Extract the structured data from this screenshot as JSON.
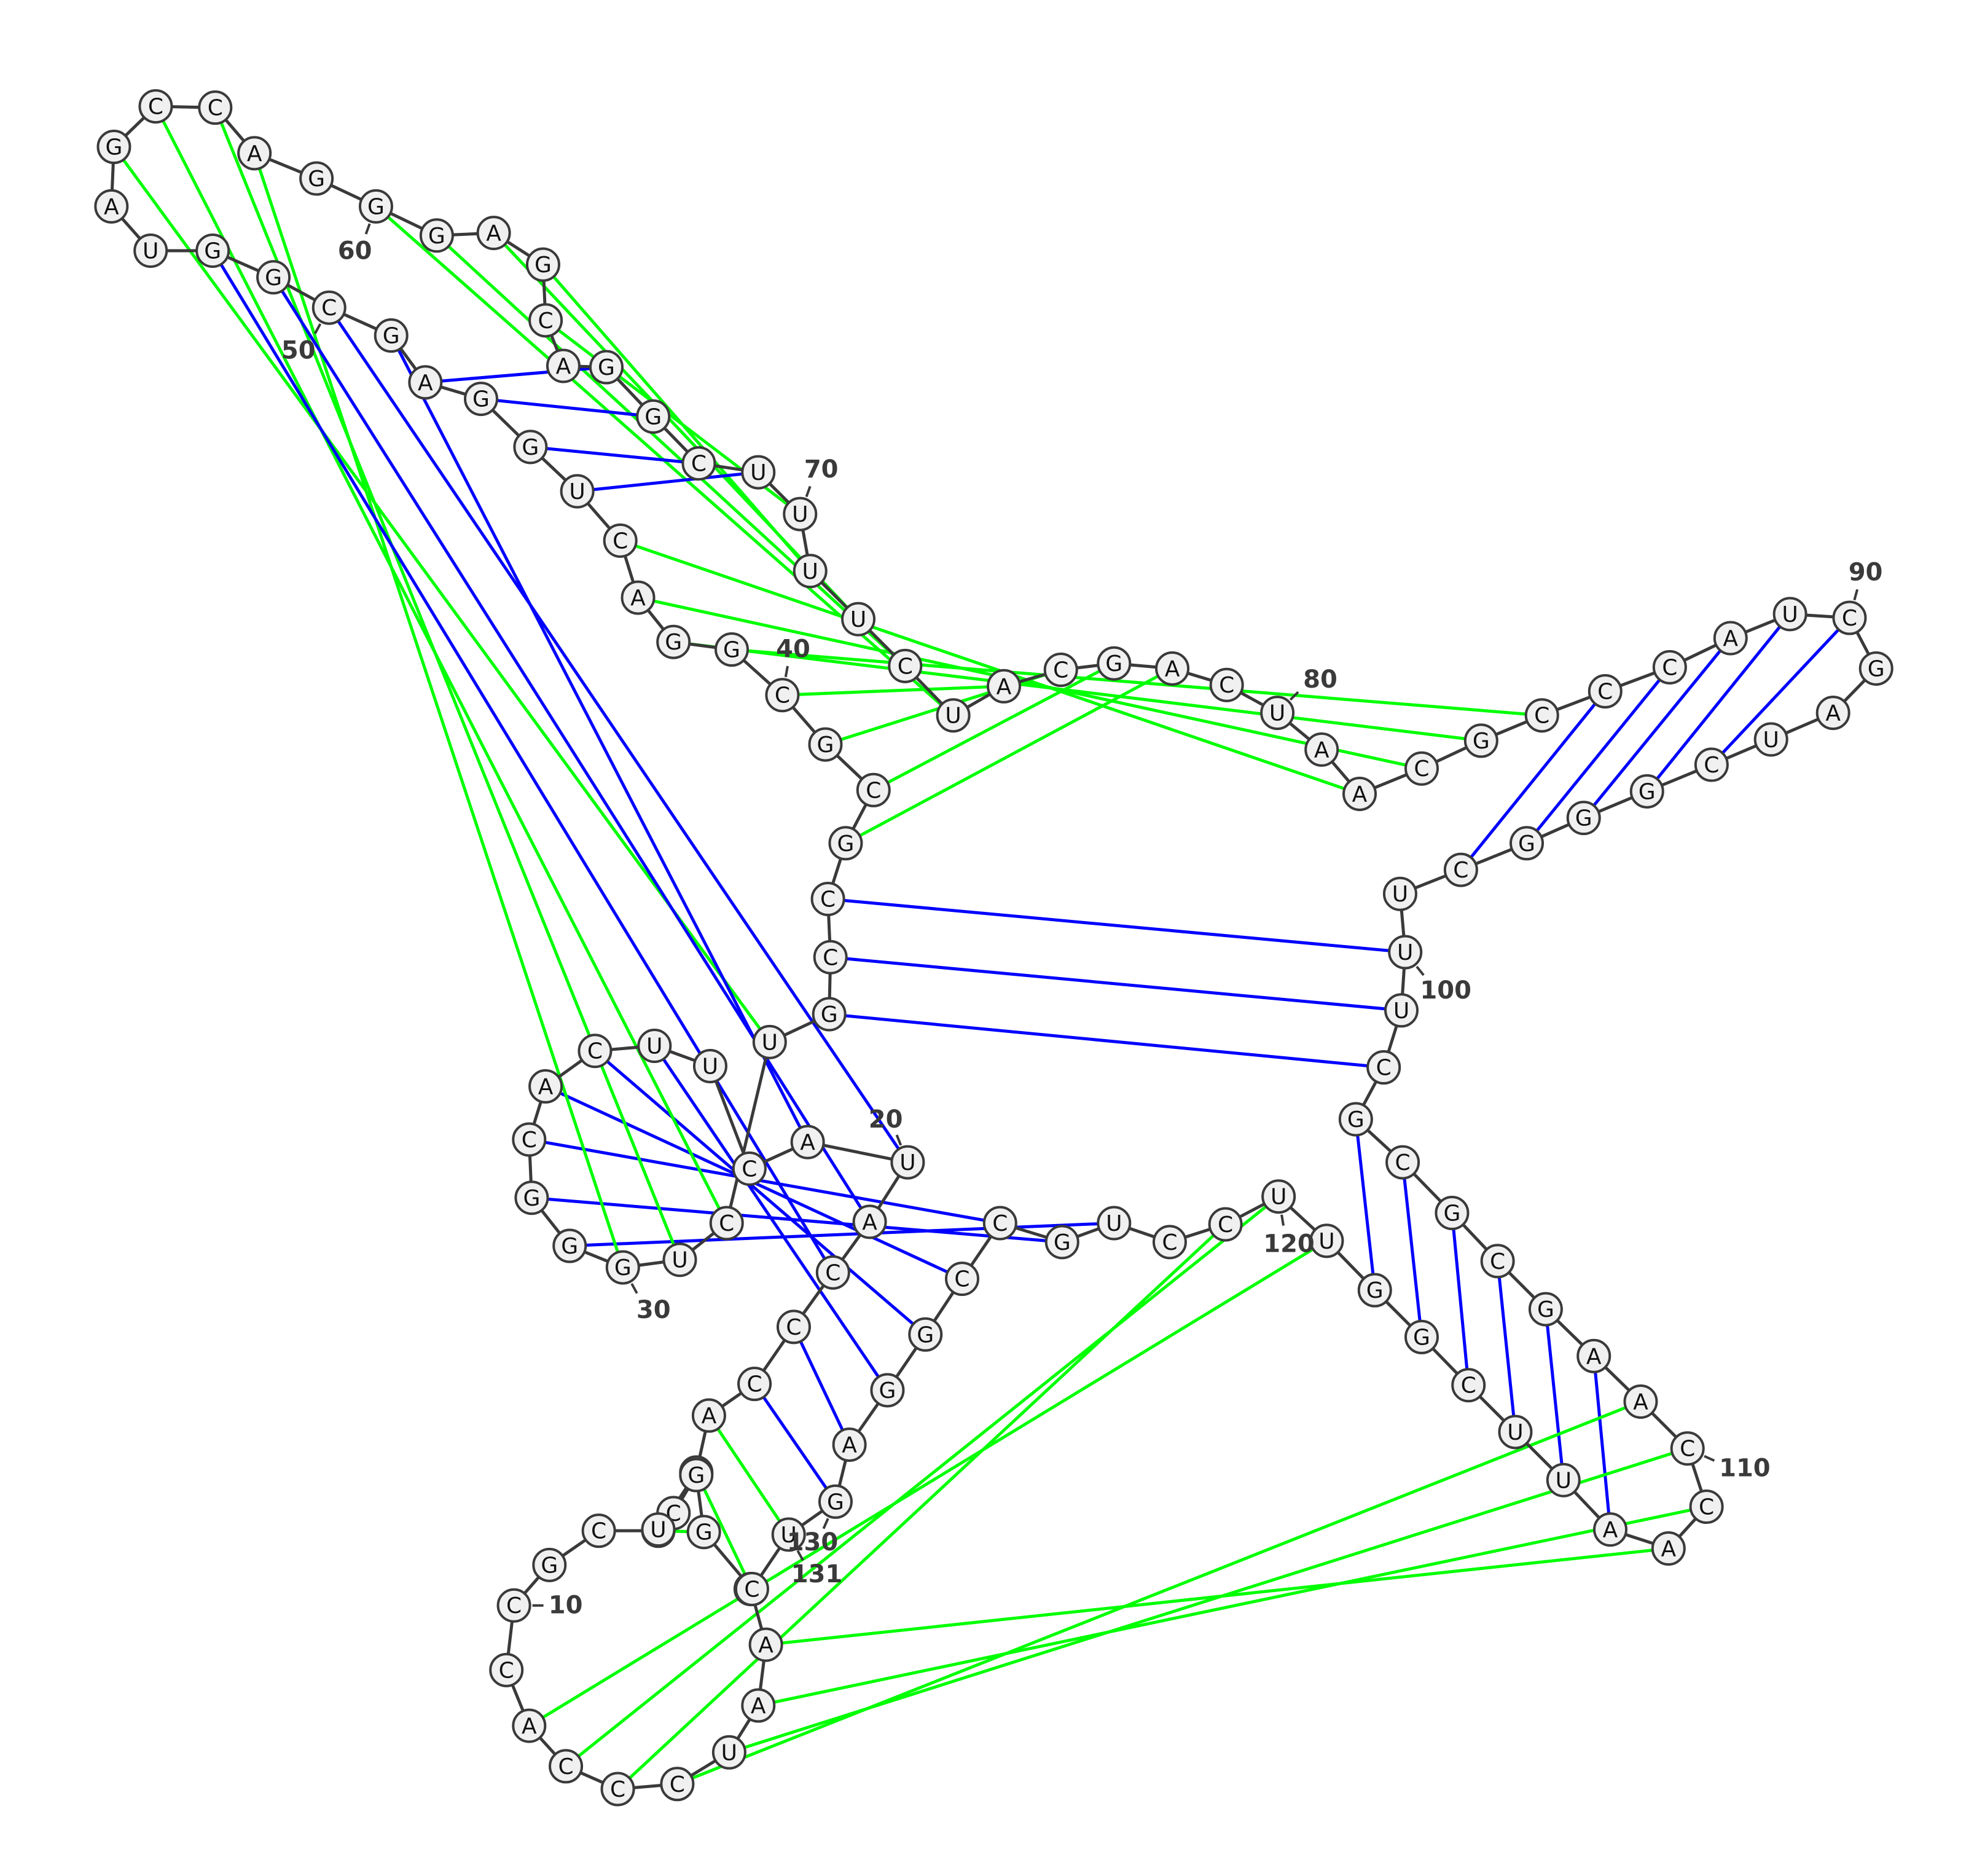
{
  "colors": {
    "backbone": "#3a3a3a",
    "canonical_pair": "#0000ff",
    "noncanonical_pair": "#00ff00",
    "nucleotide_fill": "#f0f0f0"
  },
  "nucleotides": [
    "G",
    "A",
    "A",
    "U",
    "C",
    "C",
    "C",
    "A",
    "C",
    "C",
    "G",
    "C",
    "U",
    "U",
    "A",
    "C",
    "C",
    "C",
    "A",
    "U",
    "A",
    "C",
    "U",
    "U",
    "C",
    "A",
    "C",
    "G",
    "G",
    "G",
    "U",
    "C",
    "U",
    "G",
    "C",
    "C",
    "G",
    "C",
    "G",
    "C",
    "G",
    "G",
    "A",
    "C",
    "U",
    "G",
    "G",
    "A",
    "G",
    "C",
    "G",
    "G",
    "U",
    "A",
    "G",
    "C",
    "C",
    "A",
    "G",
    "G",
    "G",
    "A",
    "G",
    "C",
    "A",
    "G",
    "G",
    "C",
    "U",
    "U",
    "U",
    "U",
    "C",
    "U",
    "A",
    "C",
    "G",
    "A",
    "C",
    "U",
    "A",
    "A",
    "C",
    "G",
    "C",
    "C",
    "C",
    "A",
    "U",
    "C",
    "G",
    "A",
    "U",
    "C",
    "G",
    "G",
    "G",
    "C",
    "U",
    "U",
    "U",
    "C",
    "G",
    "C",
    "G",
    "C",
    "G",
    "A",
    "A",
    "C",
    "C",
    "A",
    "A",
    "U",
    "U",
    "C",
    "G",
    "G",
    "U",
    "U",
    "C",
    "C",
    "U",
    "G",
    "C",
    "C",
    "G",
    "G",
    "A",
    "G",
    "U",
    "C",
    "G",
    "G",
    "C",
    "U"
  ],
  "index_labels": [
    "10",
    "20",
    "30",
    "40",
    "50",
    "60",
    "70",
    "80",
    "90",
    "100",
    "110",
    "120",
    "130",
    "131"
  ]
}
